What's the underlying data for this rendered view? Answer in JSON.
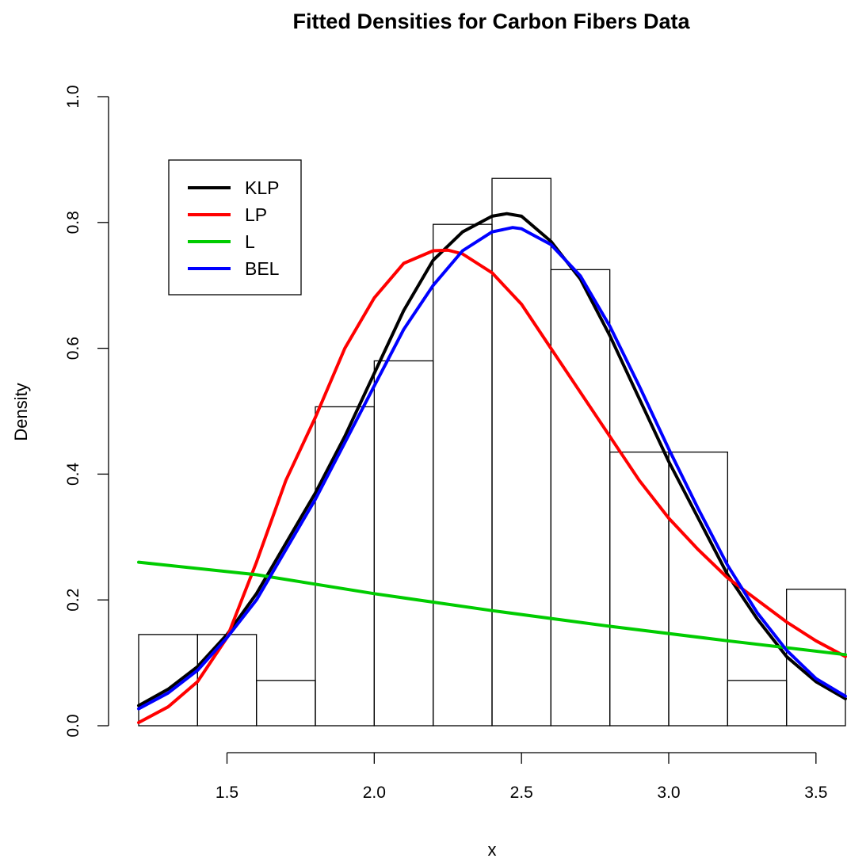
{
  "chart_data": {
    "type": "histogram+line",
    "title": "Fitted Densities for Carbon Fibers Data",
    "xlabel": "x",
    "ylabel": "Density",
    "xlim": [
      1.2,
      3.6
    ],
    "ylim": [
      0.0,
      1.0
    ],
    "x_ticks": [
      "1.5",
      "2.0",
      "2.5",
      "3.0",
      "3.5"
    ],
    "y_ticks": [
      "0.0",
      "0.2",
      "0.4",
      "0.6",
      "0.8",
      "1.0"
    ],
    "legend_position": "top-left",
    "histogram": {
      "breaks": [
        1.2,
        1.4,
        1.6,
        1.8,
        2.0,
        2.2,
        2.4,
        2.6,
        2.8,
        3.0,
        3.2,
        3.4,
        3.6
      ],
      "densities": [
        0.145,
        0.145,
        0.072,
        0.507,
        0.58,
        0.797,
        0.87,
        0.725,
        0.435,
        0.435,
        0.072,
        0.217
      ]
    },
    "series": [
      {
        "name": "KLP",
        "color": "#000000",
        "x": [
          1.2,
          1.3,
          1.4,
          1.5,
          1.6,
          1.7,
          1.8,
          1.9,
          2.0,
          2.1,
          2.2,
          2.3,
          2.4,
          2.45,
          2.5,
          2.6,
          2.7,
          2.8,
          2.9,
          3.0,
          3.1,
          3.2,
          3.3,
          3.4,
          3.5,
          3.6
        ],
        "y": [
          0.032,
          0.058,
          0.094,
          0.145,
          0.21,
          0.29,
          0.37,
          0.46,
          0.56,
          0.66,
          0.74,
          0.785,
          0.81,
          0.814,
          0.81,
          0.77,
          0.71,
          0.62,
          0.52,
          0.42,
          0.33,
          0.24,
          0.17,
          0.11,
          0.07,
          0.043
        ]
      },
      {
        "name": "LP",
        "color": "#ff0000",
        "x": [
          1.2,
          1.3,
          1.4,
          1.5,
          1.6,
          1.7,
          1.8,
          1.9,
          2.0,
          2.1,
          2.2,
          2.25,
          2.3,
          2.4,
          2.5,
          2.6,
          2.7,
          2.8,
          2.9,
          3.0,
          3.1,
          3.2,
          3.3,
          3.4,
          3.5,
          3.6
        ],
        "y": [
          0.005,
          0.03,
          0.07,
          0.14,
          0.26,
          0.39,
          0.49,
          0.6,
          0.68,
          0.735,
          0.755,
          0.756,
          0.75,
          0.72,
          0.67,
          0.6,
          0.53,
          0.46,
          0.39,
          0.33,
          0.28,
          0.235,
          0.2,
          0.165,
          0.135,
          0.11
        ]
      },
      {
        "name": "L",
        "color": "#00cc00",
        "x": [
          1.2,
          1.6,
          2.0,
          2.4,
          2.8,
          3.2,
          3.6
        ],
        "y": [
          0.26,
          0.24,
          0.21,
          0.183,
          0.158,
          0.135,
          0.113
        ]
      },
      {
        "name": "BEL",
        "color": "#0000ff",
        "x": [
          1.2,
          1.3,
          1.4,
          1.5,
          1.6,
          1.7,
          1.8,
          1.9,
          2.0,
          2.1,
          2.2,
          2.3,
          2.4,
          2.47,
          2.5,
          2.6,
          2.7,
          2.8,
          2.9,
          3.0,
          3.1,
          3.2,
          3.3,
          3.4,
          3.5,
          3.6
        ],
        "y": [
          0.027,
          0.052,
          0.088,
          0.14,
          0.2,
          0.28,
          0.36,
          0.45,
          0.54,
          0.63,
          0.7,
          0.755,
          0.785,
          0.792,
          0.79,
          0.765,
          0.715,
          0.635,
          0.54,
          0.44,
          0.345,
          0.255,
          0.18,
          0.12,
          0.075,
          0.047
        ]
      }
    ]
  }
}
